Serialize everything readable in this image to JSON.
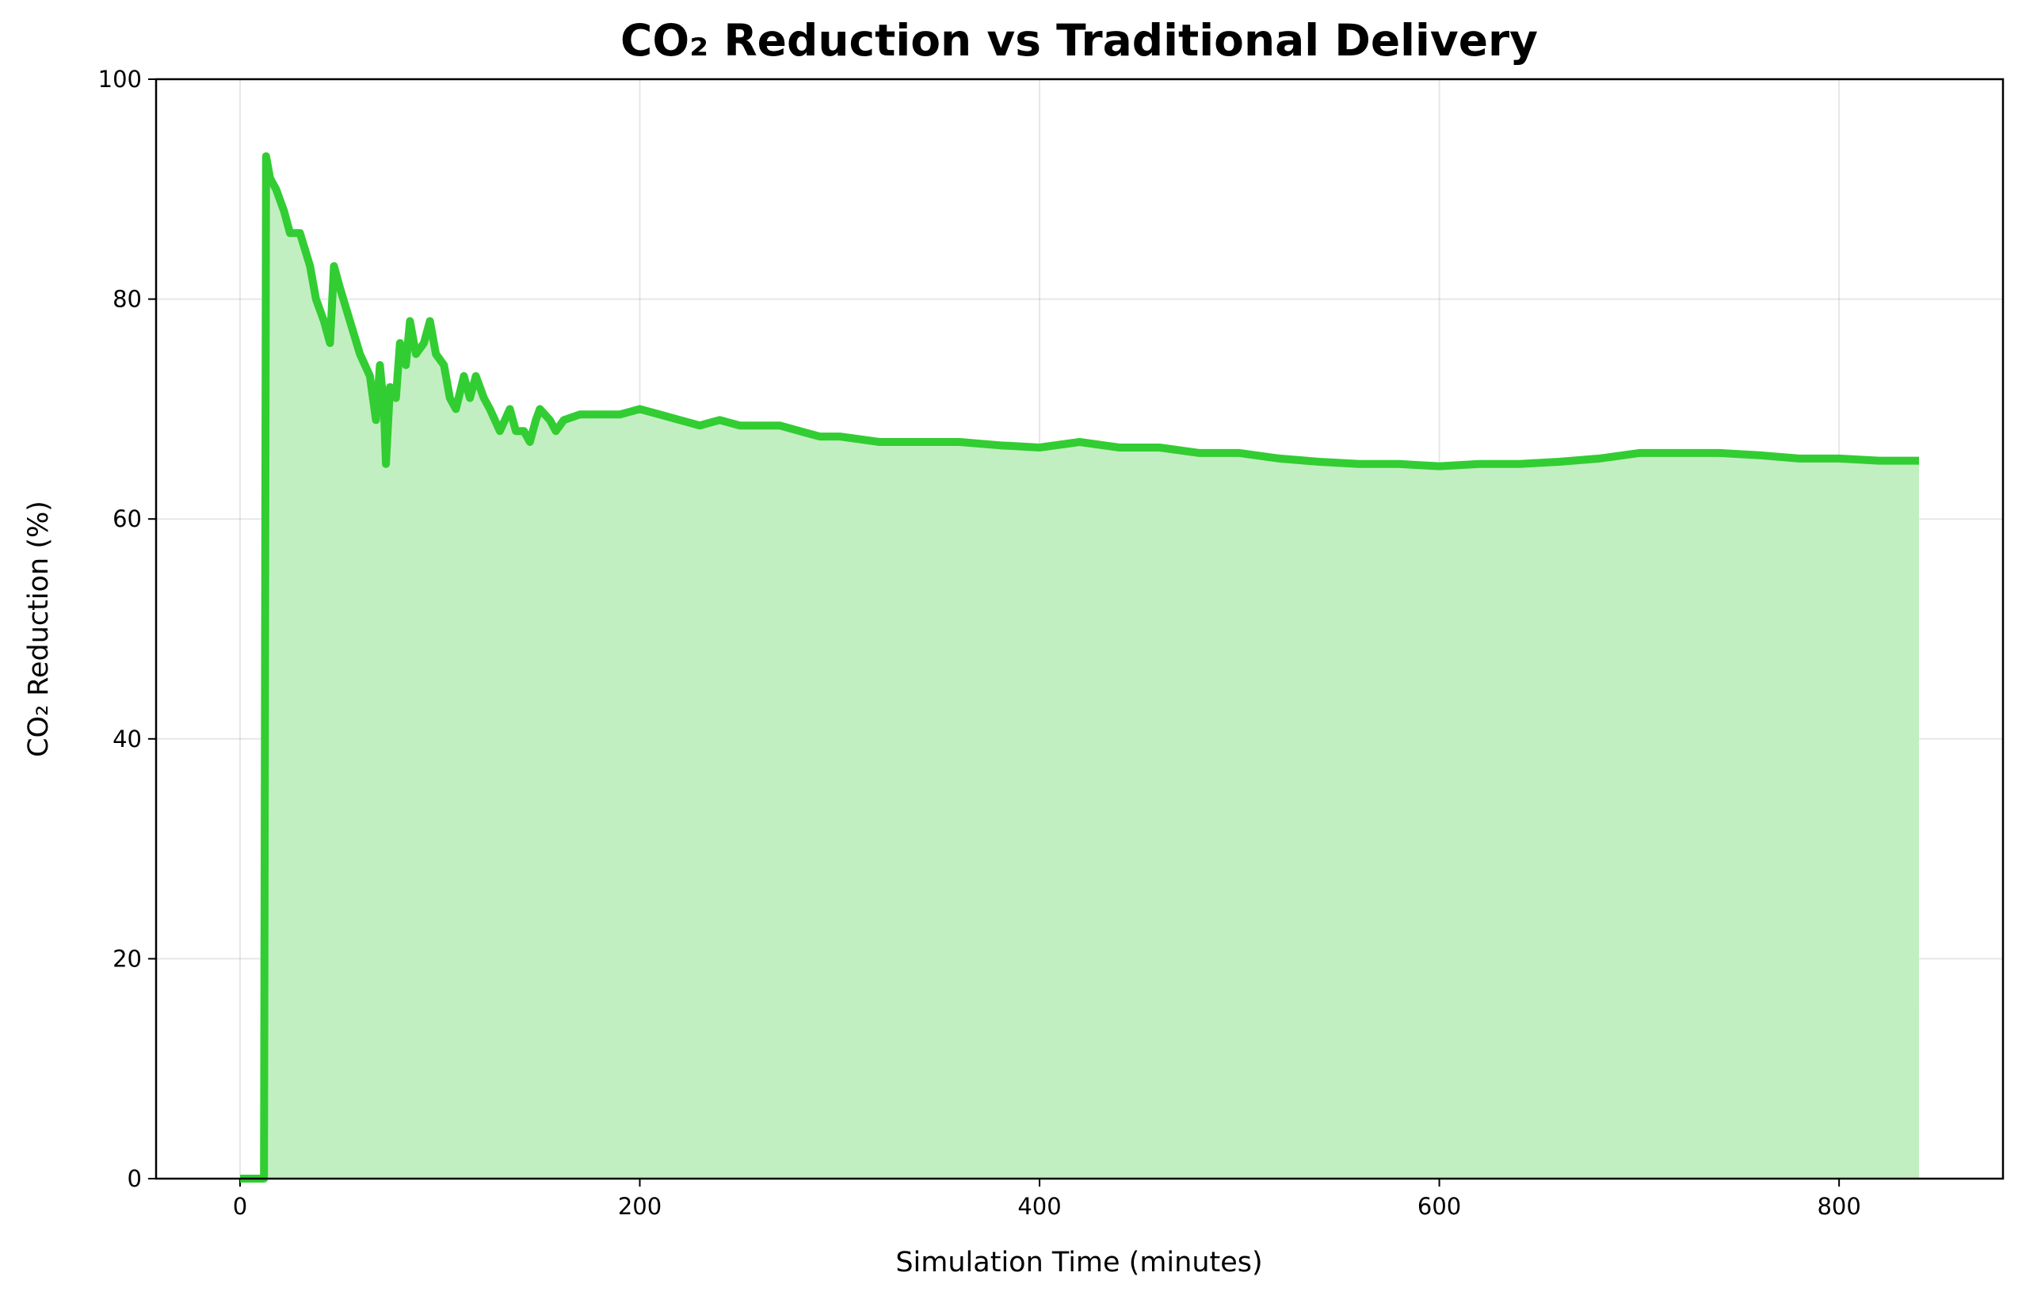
{
  "chart_data": {
    "type": "area",
    "title": "CO₂ Reduction vs Traditional Delivery",
    "x_label": "Simulation Time (minutes)",
    "y_label": "CO₂ Reduction (%)",
    "x": [
      0,
      5,
      10,
      12,
      13,
      15,
      18,
      22,
      25,
      30,
      35,
      38,
      42,
      45,
      47,
      50,
      55,
      60,
      65,
      68,
      70,
      72,
      73,
      75,
      78,
      80,
      83,
      85,
      88,
      92,
      95,
      98,
      102,
      105,
      108,
      112,
      115,
      118,
      122,
      125,
      130,
      135,
      138,
      142,
      145,
      148,
      150,
      155,
      158,
      162,
      170,
      180,
      190,
      200,
      210,
      220,
      230,
      240,
      250,
      260,
      270,
      280,
      290,
      300,
      320,
      340,
      360,
      380,
      400,
      420,
      440,
      460,
      480,
      500,
      520,
      540,
      560,
      580,
      600,
      620,
      640,
      660,
      680,
      700,
      720,
      740,
      760,
      780,
      800,
      820,
      840
    ],
    "series": [
      {
        "color": "#32cd32",
        "fill": "#c2efc2",
        "values": [
          0,
          0,
          0,
          0,
          93,
          91,
          90,
          88,
          86,
          86,
          83,
          80,
          78,
          76,
          83,
          81,
          78,
          75,
          73,
          69,
          74,
          70,
          65,
          72,
          71,
          76,
          74,
          78,
          75,
          76,
          78,
          75,
          74,
          71,
          70,
          73,
          71,
          73,
          71,
          70,
          68,
          70,
          68,
          68,
          67,
          69,
          70,
          69,
          68,
          69,
          69.5,
          69.5,
          69.5,
          70,
          69.5,
          69,
          68.5,
          69,
          68.5,
          68.5,
          68.5,
          68,
          67.5,
          67.5,
          67,
          67,
          67,
          66.7,
          66.5,
          67,
          66.5,
          66.5,
          66,
          66,
          65.5,
          65.2,
          65,
          65,
          64.8,
          65,
          65,
          65.2,
          65.5,
          66,
          66,
          66,
          65.8,
          65.5,
          65.5,
          65.3,
          65.3
        ]
      }
    ],
    "xlim": [
      -42,
      882
    ],
    "ylim": [
      0,
      100
    ],
    "xticks": [
      0,
      200,
      400,
      600,
      800
    ],
    "yticks": [
      0,
      20,
      40,
      60,
      80,
      100
    ],
    "grid": true
  }
}
